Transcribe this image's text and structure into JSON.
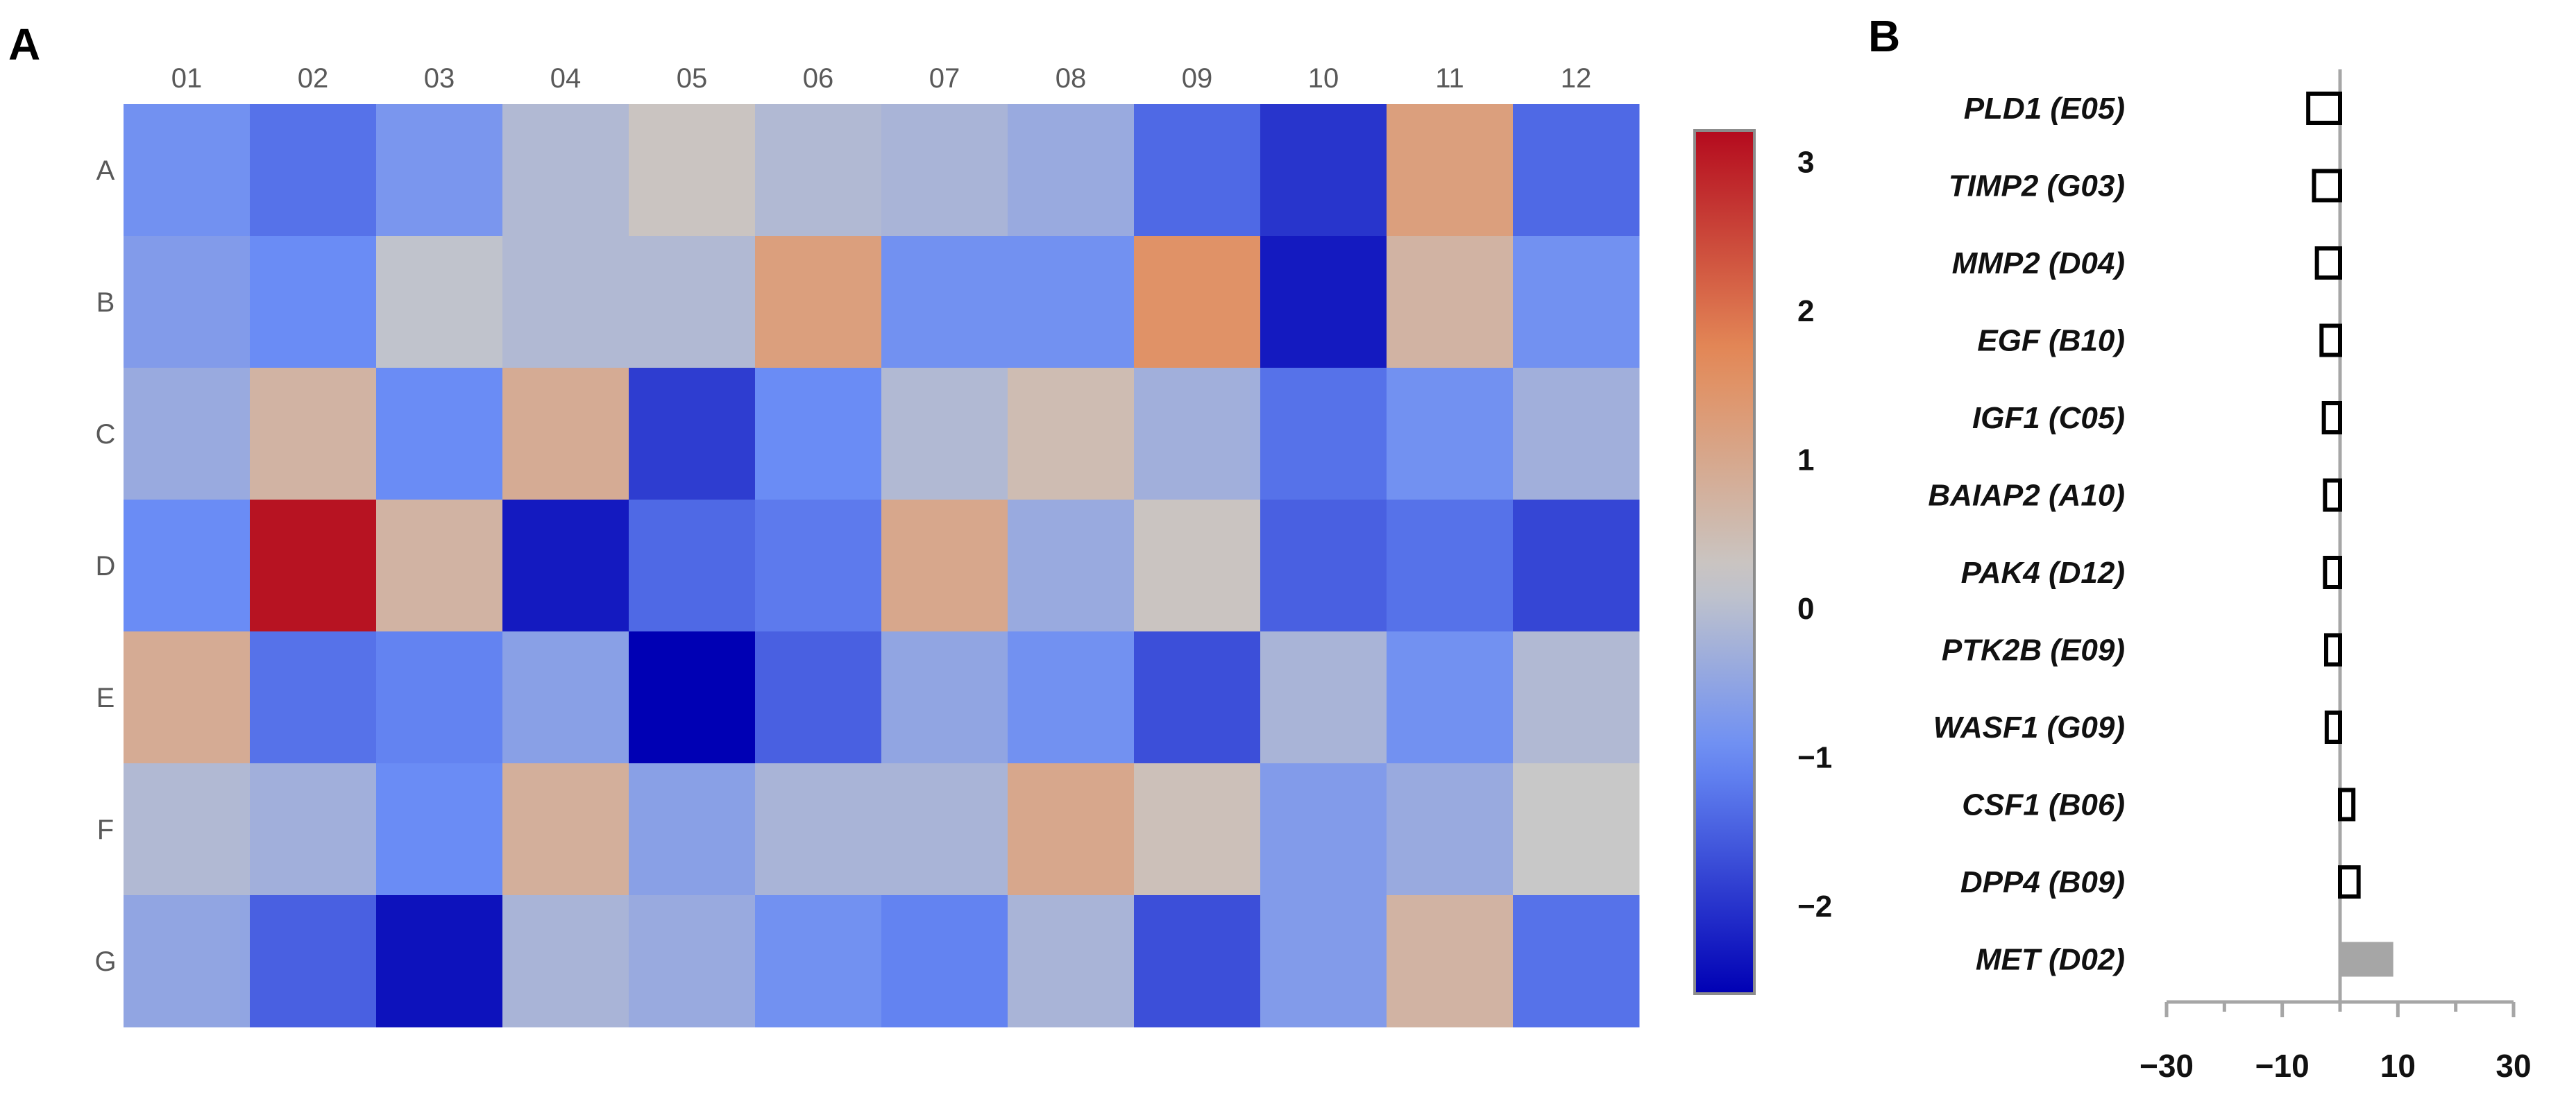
{
  "chart_data": [
    {
      "type": "heatmap",
      "panel_label": "A",
      "columns": [
        "01",
        "02",
        "03",
        "04",
        "05",
        "06",
        "07",
        "08",
        "09",
        "10",
        "11",
        "12"
      ],
      "rows": [
        "A",
        "B",
        "C",
        "D",
        "E",
        "F",
        "G"
      ],
      "values": [
        [
          -0.8,
          -1.2,
          -0.7,
          0.0,
          0.4,
          0.0,
          -0.1,
          -0.3,
          -1.3,
          -1.9,
          1.3,
          -1.3
        ],
        [
          -0.6,
          -0.9,
          0.2,
          0.0,
          0.0,
          1.3,
          -0.8,
          -0.8,
          1.6,
          -2.2,
          0.8,
          -0.8
        ],
        [
          -0.3,
          0.8,
          -0.9,
          1.0,
          -1.8,
          -0.9,
          0.0,
          0.6,
          -0.2,
          -1.2,
          -0.8,
          -0.2
        ],
        [
          -0.9,
          3.2,
          0.8,
          -2.2,
          -1.3,
          -1.1,
          1.1,
          -0.3,
          0.4,
          -1.4,
          -1.2,
          -1.7
        ],
        [
          1.0,
          -1.2,
          -1.0,
          -0.5,
          -2.6,
          -1.4,
          -0.4,
          -0.8,
          -1.6,
          -0.1,
          -0.8,
          0.0
        ],
        [
          0.0,
          -0.2,
          -0.9,
          0.9,
          -0.5,
          -0.1,
          -0.1,
          1.1,
          0.5,
          -0.6,
          -0.3,
          0.3
        ],
        [
          -0.4,
          -1.4,
          -2.3,
          -0.1,
          -0.3,
          -0.8,
          -1.0,
          -0.1,
          -1.6,
          -0.6,
          0.8,
          -1.2
        ]
      ],
      "colorbar": {
        "range": [
          -2.5,
          3.3
        ],
        "ticks": [
          3,
          2,
          1,
          0,
          -1,
          -2
        ],
        "tick_labels": [
          "3",
          "2",
          "1",
          "0",
          "−1",
          "−2"
        ],
        "colors": {
          "low": "#0000b4",
          "mid_low": "#6a8cf5",
          "mid": "#c8c8c8",
          "mid_high": "#e48a58",
          "high": "#b40a1e"
        }
      }
    },
    {
      "type": "bar",
      "orientation": "horizontal",
      "panel_label": "B",
      "categories": [
        "PLD1 (E05)",
        "TIMP2 (G03)",
        "MMP2 (D04)",
        "EGF (B10)",
        "IGF1 (C05)",
        "BAIAP2 (A10)",
        "PAK4 (D12)",
        "PTK2B (E09)",
        "WASF1 (G09)",
        "CSF1 (B06)",
        "DPP4 (B09)",
        "MET (D02)"
      ],
      "values": [
        -5.5,
        -4.5,
        -4.0,
        -3.2,
        -2.8,
        -2.6,
        -2.6,
        -2.4,
        -2.3,
        2.3,
        3.2,
        9.2
      ],
      "xlim": [
        -30,
        30
      ],
      "x_ticks": [
        -30,
        -10,
        10,
        30
      ],
      "x_tick_labels": [
        "−30",
        "−10",
        "10",
        "30"
      ],
      "colors": {
        "negative_fill": "#ffffff",
        "positive_small_fill": "#ffffff",
        "highlight_fill": "#a6a6a6",
        "axis": "#a6a6a6"
      }
    }
  ]
}
